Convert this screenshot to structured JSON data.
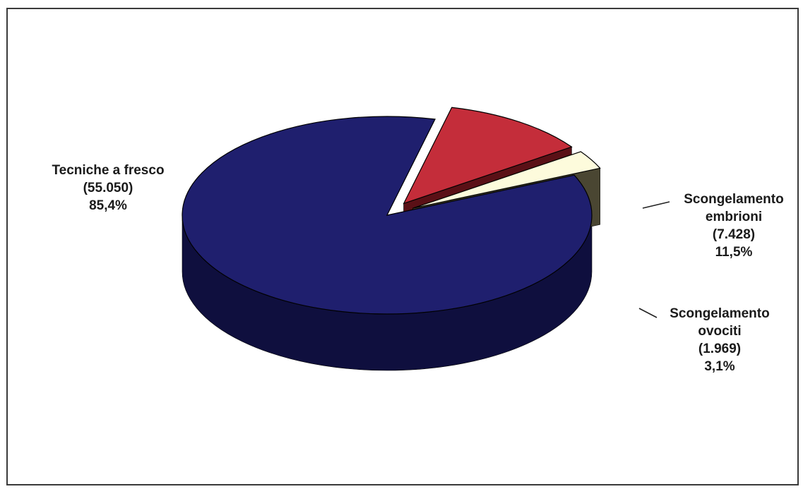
{
  "chart_data": {
    "type": "pie",
    "style": "3d-exploded",
    "slices": [
      {
        "name": "Tecniche a fresco",
        "count": "(55.050)",
        "percent": "85,4%",
        "value": 55050,
        "color": "#1f1f6e",
        "side_color": "#0f0f3e"
      },
      {
        "name_line1": "Scongelamento",
        "name_line2": "embrioni",
        "count": "(7.428)",
        "percent": "11,5%",
        "value": 7428,
        "color": "#c42d3a",
        "side_color": "#5a1016"
      },
      {
        "name_line1": "Scongelamento",
        "name_line2": "ovociti",
        "count": "(1.969)",
        "percent": "3,1%",
        "value": 1969,
        "color": "#fdfbdc",
        "side_color": "#4a4632"
      }
    ]
  }
}
